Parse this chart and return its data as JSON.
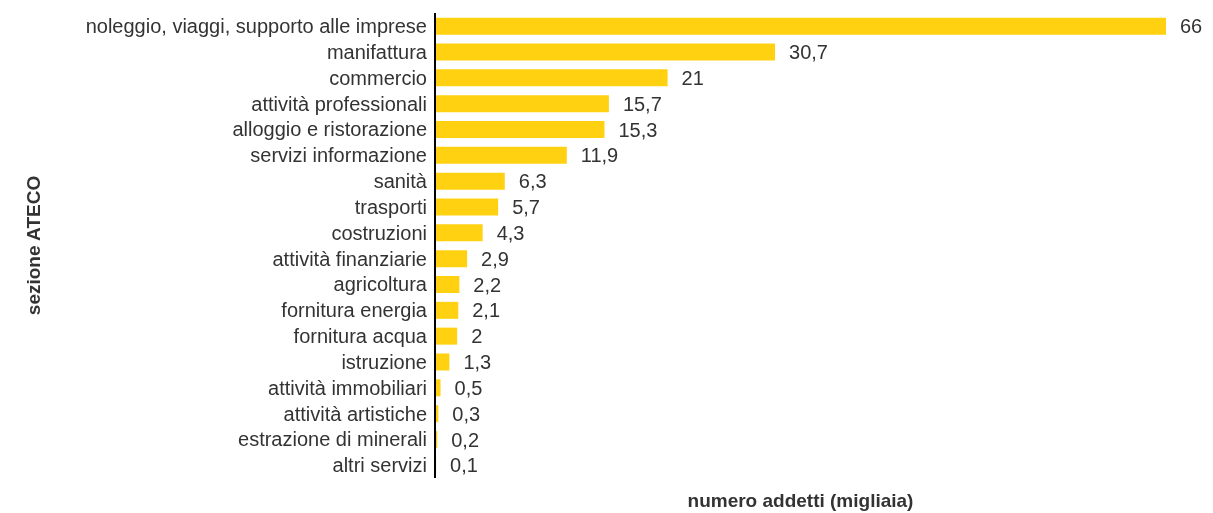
{
  "chart_data": {
    "type": "bar",
    "orientation": "horizontal",
    "xlabel": "numero addetti (migliaia)",
    "ylabel": "sezione ATECO",
    "categories": [
      "noleggio, viaggi, supporto alle imprese",
      "manifattura",
      "commercio",
      "attività professionali",
      "alloggio e ristorazione",
      "servizi informazione",
      "sanità",
      "trasporti",
      "costruzioni",
      "attività finanziarie",
      "agricoltura",
      "fornitura energia",
      "fornitura acqua",
      "istruzione",
      "attività immobiliari",
      "attività artistiche",
      "estrazione di minerali",
      "altri servizi"
    ],
    "values": [
      66,
      30.7,
      21,
      15.7,
      15.3,
      11.9,
      6.3,
      5.7,
      4.3,
      2.9,
      2.2,
      2.1,
      2,
      1.3,
      0.5,
      0.3,
      0.2,
      0.1
    ],
    "value_labels": [
      "66",
      "30,7",
      "21",
      "15,7",
      "15,3",
      "11,9",
      "6,3",
      "5,7",
      "4,3",
      "2,9",
      "2,2",
      "2,1",
      "2",
      "1,3",
      "0,5",
      "0,3",
      "0,2",
      "0,1"
    ],
    "color": "#ffd110",
    "grid": false,
    "legend": false
  }
}
